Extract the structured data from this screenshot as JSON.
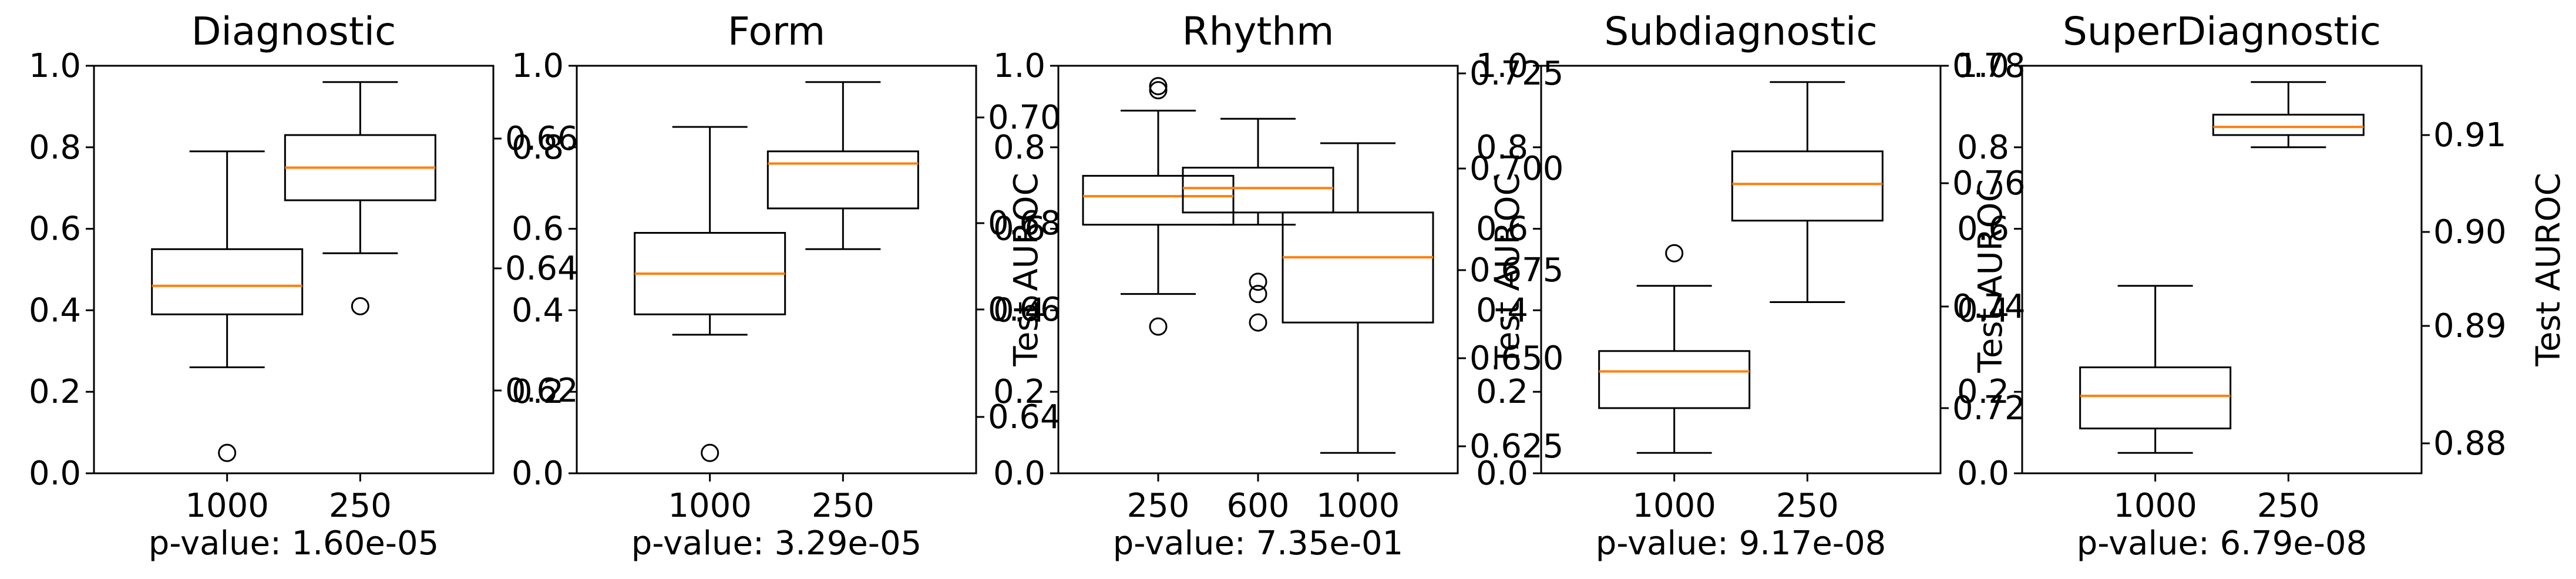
{
  "chart_data": [
    {
      "type": "box",
      "title": "Diagnostic",
      "categories": [
        "1000",
        "250"
      ],
      "footer": "p-value: 1.60e-05",
      "left_axis": {
        "ticks": [
          "0.0",
          "0.2",
          "0.4",
          "0.6",
          "0.8",
          "1.0"
        ]
      },
      "right_axis": {
        "ticks": [
          "0.62",
          "0.64",
          "0.66"
        ],
        "ylabel": ""
      },
      "boxes": [
        {
          "category": "1000",
          "whisker_low": 0.26,
          "q1": 0.39,
          "median": 0.46,
          "q3": 0.55,
          "whisker_high": 0.79,
          "fliers": [
            0.05
          ]
        },
        {
          "category": "250",
          "whisker_low": 0.54,
          "q1": 0.67,
          "median": 0.75,
          "q3": 0.83,
          "whisker_high": 0.96,
          "fliers": [
            0.41
          ]
        }
      ]
    },
    {
      "type": "box",
      "title": "Form",
      "categories": [
        "1000",
        "250"
      ],
      "footer": "p-value: 3.29e-05",
      "left_axis": {
        "ticks": [
          "0.0",
          "0.2",
          "0.4",
          "0.6",
          "0.8",
          "1.0"
        ]
      },
      "right_axis": {
        "ticks": [
          "0.64",
          "0.66",
          "0.68",
          "0.70"
        ],
        "ylabel": "Test AUROC"
      },
      "boxes": [
        {
          "category": "1000",
          "whisker_low": 0.34,
          "q1": 0.39,
          "median": 0.49,
          "q3": 0.59,
          "whisker_high": 0.85,
          "fliers": [
            0.05
          ]
        },
        {
          "category": "250",
          "whisker_low": 0.55,
          "q1": 0.65,
          "median": 0.76,
          "q3": 0.79,
          "whisker_high": 0.96,
          "fliers": []
        }
      ]
    },
    {
      "type": "box",
      "title": "Rhythm",
      "categories": [
        "250",
        "600",
        "1000"
      ],
      "footer": "p-value: 7.35e-01",
      "left_axis": {
        "ticks": [
          "0.0",
          "0.2",
          "0.4",
          "0.6",
          "0.8",
          "1.0"
        ]
      },
      "right_axis": {
        "ticks": [
          "0.625",
          "0.650",
          "0.675",
          "0.700",
          "0.725"
        ],
        "ylabel": "Test AUROC"
      },
      "boxes": [
        {
          "category": "250",
          "whisker_low": 0.44,
          "q1": 0.61,
          "median": 0.68,
          "q3": 0.73,
          "whisker_high": 0.89,
          "fliers": [
            0.36,
            0.94,
            0.95
          ]
        },
        {
          "category": "600",
          "whisker_low": 0.61,
          "q1": 0.64,
          "median": 0.7,
          "q3": 0.75,
          "whisker_high": 0.87,
          "fliers": [
            0.37,
            0.44,
            0.47
          ]
        },
        {
          "category": "1000",
          "whisker_low": 0.05,
          "q1": 0.37,
          "median": 0.53,
          "q3": 0.64,
          "whisker_high": 0.81,
          "fliers": []
        }
      ]
    },
    {
      "type": "box",
      "title": "Subdiagnostic",
      "categories": [
        "1000",
        "250"
      ],
      "footer": "p-value: 9.17e-08",
      "left_axis": {
        "ticks": [
          "0.0",
          "0.2",
          "0.4",
          "0.6",
          "0.8",
          "1.0"
        ]
      },
      "right_axis": {
        "ticks": [
          "0.72",
          "0.74",
          "0.76",
          "0.78"
        ],
        "ylabel": "Test AUROC"
      },
      "boxes": [
        {
          "category": "1000",
          "whisker_low": 0.05,
          "q1": 0.16,
          "median": 0.25,
          "q3": 0.3,
          "whisker_high": 0.46,
          "fliers": [
            0.54
          ]
        },
        {
          "category": "250",
          "whisker_low": 0.42,
          "q1": 0.62,
          "median": 0.71,
          "q3": 0.79,
          "whisker_high": 0.96,
          "fliers": []
        }
      ]
    },
    {
      "type": "box",
      "title": "SuperDiagnostic",
      "categories": [
        "1000",
        "250"
      ],
      "footer": "p-value: 6.79e-08",
      "left_axis": {
        "ticks": [
          "0.0",
          "0.2",
          "0.4",
          "0.6",
          "0.8",
          "1.0"
        ]
      },
      "right_axis": {
        "ticks": [
          "0.88",
          "0.89",
          "0.90",
          "0.91"
        ],
        "ylabel": "Test AUROC"
      },
      "boxes": [
        {
          "category": "1000",
          "whisker_low": 0.05,
          "q1": 0.11,
          "median": 0.19,
          "q3": 0.26,
          "whisker_high": 0.46,
          "fliers": []
        },
        {
          "category": "250",
          "whisker_low": 0.8,
          "q1": 0.83,
          "median": 0.85,
          "q3": 0.88,
          "whisker_high": 0.96,
          "fliers": []
        }
      ]
    }
  ],
  "colors": {
    "median": "#ff7f0e",
    "axes": "#000000",
    "box": "#000000"
  }
}
